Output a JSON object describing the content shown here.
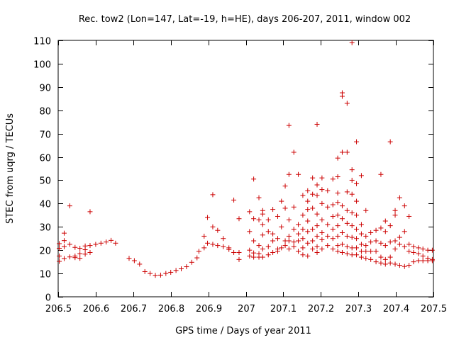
{
  "chart_data": {
    "type": "scatter",
    "title": "Rec. tow2 (Lon=147, Lat=-19, h=HE), days 206-207, 2011, window 002",
    "xlabel": "GPS time / Days of year 2011",
    "ylabel": "STEC from uqrg / TECUs",
    "xlim": [
      206.5,
      207.5
    ],
    "ylim": [
      0,
      110
    ],
    "xticks": [
      206.5,
      206.6,
      206.7,
      206.8,
      206.9,
      207,
      207.1,
      207.2,
      207.3,
      207.4,
      207.5
    ],
    "xtick_labels": [
      "206.5",
      "206.6",
      "206.7",
      "206.8",
      "206.9",
      "207",
      "207.1",
      "207.2",
      "207.3",
      "207.4",
      "207.5"
    ],
    "yticks": [
      0,
      10,
      20,
      30,
      40,
      50,
      60,
      70,
      80,
      90,
      100,
      110
    ],
    "ytick_labels": [
      "0",
      "10",
      "20",
      "30",
      "40",
      "50",
      "60",
      "70",
      "80",
      "90",
      "100",
      "110"
    ],
    "marker": "+",
    "color": "#cc0000",
    "series": [
      {
        "name": "STEC",
        "points": [
          [
            206.503,
            22.8
          ],
          [
            206.503,
            20.8
          ],
          [
            206.503,
            17.5
          ],
          [
            206.503,
            15.2
          ],
          [
            206.516,
            27.3
          ],
          [
            206.516,
            24.1
          ],
          [
            206.516,
            21.5
          ],
          [
            206.516,
            16.4
          ],
          [
            206.531,
            39.0
          ],
          [
            206.531,
            22.5
          ],
          [
            206.531,
            17.1
          ],
          [
            206.545,
            21.2
          ],
          [
            206.545,
            17.5
          ],
          [
            206.545,
            16.8
          ],
          [
            206.558,
            20.8
          ],
          [
            206.558,
            18.5
          ],
          [
            206.558,
            16.5
          ],
          [
            206.572,
            21.8
          ],
          [
            206.572,
            20.2
          ],
          [
            206.572,
            18.3
          ],
          [
            206.585,
            36.5
          ],
          [
            206.585,
            22.0
          ],
          [
            206.585,
            19.0
          ],
          [
            206.6,
            22.5
          ],
          [
            206.614,
            23.0
          ],
          [
            206.628,
            23.5
          ],
          [
            206.641,
            24.2
          ],
          [
            206.653,
            23.0
          ],
          [
            206.689,
            16.5
          ],
          [
            206.703,
            15.5
          ],
          [
            206.717,
            14.0
          ],
          [
            206.731,
            10.8
          ],
          [
            206.745,
            10.0
          ],
          [
            206.759,
            9.2
          ],
          [
            206.773,
            9.3
          ],
          [
            206.787,
            10.0
          ],
          [
            206.8,
            10.5
          ],
          [
            206.814,
            11.3
          ],
          [
            206.828,
            12.0
          ],
          [
            206.842,
            12.9
          ],
          [
            206.856,
            14.8
          ],
          [
            206.87,
            16.7
          ],
          [
            206.875,
            19.5
          ],
          [
            206.889,
            26.0
          ],
          [
            206.889,
            21.0
          ],
          [
            206.898,
            34.0
          ],
          [
            206.898,
            23.0
          ],
          [
            206.912,
            43.8
          ],
          [
            206.912,
            30.0
          ],
          [
            206.912,
            22.5
          ],
          [
            206.925,
            28.5
          ],
          [
            206.925,
            22.0
          ],
          [
            206.94,
            25.0
          ],
          [
            206.94,
            21.5
          ],
          [
            206.955,
            21.0
          ],
          [
            206.955,
            20.3
          ],
          [
            206.968,
            41.5
          ],
          [
            206.968,
            19.0
          ],
          [
            206.982,
            33.5
          ],
          [
            206.982,
            19.0
          ],
          [
            206.982,
            16.0
          ],
          [
            207.01,
            36.5
          ],
          [
            207.01,
            28.0
          ],
          [
            207.01,
            20.0
          ],
          [
            207.01,
            17.5
          ],
          [
            207.021,
            50.5
          ],
          [
            207.021,
            33.5
          ],
          [
            207.021,
            24.0
          ],
          [
            207.021,
            18.8
          ],
          [
            207.021,
            17.0
          ],
          [
            207.035,
            42.5
          ],
          [
            207.035,
            33.0
          ],
          [
            207.035,
            22.0
          ],
          [
            207.035,
            18.5
          ],
          [
            207.035,
            17.0
          ],
          [
            207.045,
            37.0
          ],
          [
            207.045,
            35.5
          ],
          [
            207.045,
            31.0
          ],
          [
            207.045,
            26.5
          ],
          [
            207.045,
            20.5
          ],
          [
            207.045,
            17.0
          ],
          [
            207.06,
            33.0
          ],
          [
            207.06,
            28.0
          ],
          [
            207.06,
            21.5
          ],
          [
            207.06,
            18.0
          ],
          [
            207.072,
            37.5
          ],
          [
            207.072,
            27.0
          ],
          [
            207.072,
            24.0
          ],
          [
            207.072,
            19.0
          ],
          [
            207.085,
            34.5
          ],
          [
            207.085,
            25.0
          ],
          [
            207.085,
            20.5
          ],
          [
            207.085,
            19.5
          ],
          [
            207.095,
            41.0
          ],
          [
            207.095,
            30.0
          ],
          [
            207.095,
            21.0
          ],
          [
            207.105,
            47.5
          ],
          [
            207.105,
            38.0
          ],
          [
            207.105,
            24.0
          ],
          [
            207.105,
            22.0
          ],
          [
            207.115,
            73.5
          ],
          [
            207.115,
            52.5
          ],
          [
            207.115,
            33.0
          ],
          [
            207.115,
            26.0
          ],
          [
            207.115,
            24.0
          ],
          [
            207.115,
            20.5
          ],
          [
            207.128,
            62.0
          ],
          [
            207.128,
            38.5
          ],
          [
            207.128,
            29.0
          ],
          [
            207.128,
            23.5
          ],
          [
            207.128,
            21.5
          ],
          [
            207.14,
            52.5
          ],
          [
            207.14,
            31.0
          ],
          [
            207.14,
            27.0
          ],
          [
            207.14,
            24.0
          ],
          [
            207.14,
            19.5
          ],
          [
            207.152,
            43.5
          ],
          [
            207.152,
            35.0
          ],
          [
            207.152,
            29.0
          ],
          [
            207.152,
            25.0
          ],
          [
            207.152,
            21.0
          ],
          [
            207.152,
            18.0
          ],
          [
            207.165,
            45.5
          ],
          [
            207.165,
            41.0
          ],
          [
            207.165,
            37.5
          ],
          [
            207.165,
            32.5
          ],
          [
            207.165,
            28.0
          ],
          [
            207.165,
            23.0
          ],
          [
            207.165,
            17.5
          ],
          [
            207.178,
            51.0
          ],
          [
            207.178,
            44.0
          ],
          [
            207.178,
            38.0
          ],
          [
            207.178,
            29.0
          ],
          [
            207.178,
            24.0
          ],
          [
            207.178,
            20.5
          ],
          [
            207.19,
            74.0
          ],
          [
            207.19,
            48.0
          ],
          [
            207.19,
            43.5
          ],
          [
            207.19,
            35.5
          ],
          [
            207.19,
            30.5
          ],
          [
            207.19,
            26.0
          ],
          [
            207.19,
            21.5
          ],
          [
            207.19,
            19.0
          ],
          [
            207.203,
            51.0
          ],
          [
            207.203,
            46.0
          ],
          [
            207.203,
            40.0
          ],
          [
            207.203,
            33.0
          ],
          [
            207.203,
            27.5
          ],
          [
            207.203,
            24.5
          ],
          [
            207.203,
            20.5
          ],
          [
            207.218,
            45.5
          ],
          [
            207.218,
            38.5
          ],
          [
            207.218,
            31.0
          ],
          [
            207.218,
            26.0
          ],
          [
            207.218,
            22.0
          ],
          [
            207.232,
            50.5
          ],
          [
            207.232,
            39.5
          ],
          [
            207.232,
            34.5
          ],
          [
            207.232,
            29.0
          ],
          [
            207.232,
            25.0
          ],
          [
            207.232,
            20.5
          ],
          [
            207.245,
            59.5
          ],
          [
            207.245,
            51.5
          ],
          [
            207.245,
            44.5
          ],
          [
            207.245,
            40.5
          ],
          [
            207.245,
            35.0
          ],
          [
            207.245,
            30.5
          ],
          [
            207.245,
            26.0
          ],
          [
            207.245,
            22.0
          ],
          [
            207.245,
            19.5
          ],
          [
            207.257,
            87.5
          ],
          [
            207.257,
            86.0
          ],
          [
            207.257,
            62.0
          ],
          [
            207.257,
            39.0
          ],
          [
            207.257,
            33.5
          ],
          [
            207.257,
            27.5
          ],
          [
            207.257,
            22.5
          ],
          [
            207.257,
            19.0
          ],
          [
            207.27,
            83.0
          ],
          [
            207.27,
            62.0
          ],
          [
            207.27,
            45.0
          ],
          [
            207.27,
            37.0
          ],
          [
            207.27,
            31.5
          ],
          [
            207.27,
            26.0
          ],
          [
            207.27,
            21.5
          ],
          [
            207.27,
            18.5
          ],
          [
            207.283,
            109.0
          ],
          [
            207.283,
            54.5
          ],
          [
            207.283,
            50.0
          ],
          [
            207.283,
            44.0
          ],
          [
            207.283,
            36.0
          ],
          [
            207.283,
            30.5
          ],
          [
            207.283,
            25.5
          ],
          [
            207.283,
            21.0
          ],
          [
            207.283,
            18.0
          ],
          [
            207.295,
            66.5
          ],
          [
            207.295,
            48.5
          ],
          [
            207.295,
            41.0
          ],
          [
            207.295,
            35.0
          ],
          [
            207.295,
            29.0
          ],
          [
            207.295,
            25.0
          ],
          [
            207.295,
            21.0
          ],
          [
            207.295,
            18.0
          ],
          [
            207.308,
            52.0
          ],
          [
            207.308,
            31.0
          ],
          [
            207.308,
            27.0
          ],
          [
            207.308,
            22.5
          ],
          [
            207.308,
            19.5
          ],
          [
            207.308,
            17.0
          ],
          [
            207.32,
            37.0
          ],
          [
            207.32,
            26.0
          ],
          [
            207.32,
            22.0
          ],
          [
            207.32,
            19.5
          ],
          [
            207.32,
            16.5
          ],
          [
            207.333,
            27.5
          ],
          [
            207.333,
            23.5
          ],
          [
            207.333,
            19.5
          ],
          [
            207.333,
            16.0
          ],
          [
            207.347,
            28.5
          ],
          [
            207.347,
            24.0
          ],
          [
            207.347,
            19.5
          ],
          [
            207.347,
            15.0
          ],
          [
            207.36,
            52.5
          ],
          [
            207.36,
            29.5
          ],
          [
            207.36,
            23.0
          ],
          [
            207.36,
            17.0
          ],
          [
            207.36,
            14.5
          ],
          [
            207.372,
            32.5
          ],
          [
            207.372,
            28.0
          ],
          [
            207.372,
            22.0
          ],
          [
            207.372,
            16.0
          ],
          [
            207.372,
            14.0
          ],
          [
            207.385,
            66.5
          ],
          [
            207.385,
            30.5
          ],
          [
            207.385,
            23.5
          ],
          [
            207.385,
            17.0
          ],
          [
            207.385,
            14.5
          ],
          [
            207.398,
            37.0
          ],
          [
            207.398,
            35.0
          ],
          [
            207.398,
            24.0
          ],
          [
            207.398,
            20.5
          ],
          [
            207.398,
            14.0
          ],
          [
            207.41,
            42.5
          ],
          [
            207.41,
            25.5
          ],
          [
            207.41,
            22.5
          ],
          [
            207.41,
            13.5
          ],
          [
            207.423,
            39.0
          ],
          [
            207.423,
            28.0
          ],
          [
            207.423,
            21.5
          ],
          [
            207.423,
            13.0
          ],
          [
            207.435,
            34.5
          ],
          [
            207.435,
            22.5
          ],
          [
            207.435,
            19.5
          ],
          [
            207.435,
            13.5
          ],
          [
            207.447,
            21.5
          ],
          [
            207.447,
            19.0
          ],
          [
            207.447,
            15.0
          ],
          [
            207.46,
            21.0
          ],
          [
            207.46,
            18.5
          ],
          [
            207.46,
            15.5
          ],
          [
            207.472,
            20.5
          ],
          [
            207.472,
            17.5
          ],
          [
            207.472,
            15.5
          ],
          [
            207.485,
            20.0
          ],
          [
            207.485,
            16.5
          ],
          [
            207.485,
            15.5
          ],
          [
            207.497,
            20.0
          ],
          [
            207.497,
            16.0
          ],
          [
            207.497,
            15.5
          ]
        ]
      }
    ]
  }
}
